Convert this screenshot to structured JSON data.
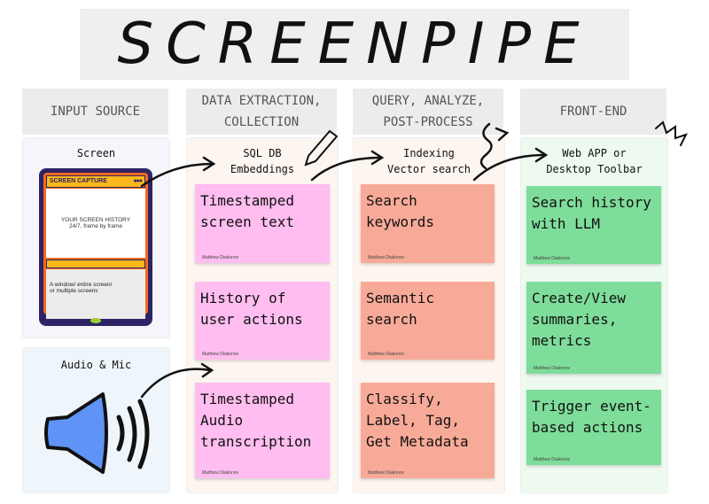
{
  "title": "SCREENPIPE",
  "columns": [
    {
      "header": "INPUT SOURCE"
    },
    {
      "header": "DATA EXTRACTION,\nCOLLECTION",
      "subtitle": "SQL DB\nEmbeddings"
    },
    {
      "header": "QUERY, ANALYZE,\nPOST-PROCESS",
      "subtitle": "Indexing\nVector search"
    },
    {
      "header": "FRONT-END",
      "subtitle": "Web APP or\nDesktop Toolbar"
    }
  ],
  "inputs": {
    "screen": {
      "title": "Screen",
      "card_label": "SCREEN CAPTURE",
      "card_body": "YOUR SCREEN HISTORY\n24/7, frame by frame",
      "card_footer": "A window/ entire screen/\nor multiple screens"
    },
    "audio": {
      "title": "Audio & Mic",
      "icon": "speaker-icon"
    }
  },
  "author": "Matthew Diakonov",
  "extraction_notes": [
    "Timestamped\nscreen text",
    "History of\nuser actions",
    "Timestamped\nAudio\ntranscription"
  ],
  "query_notes": [
    "Search\nkeywords",
    "Semantic\nsearch",
    "Classify,\nLabel, Tag,\nGet Metadata"
  ],
  "frontend_notes": [
    "Search history\nwith LLM",
    "Create/View\nsummaries,\nmetrics",
    "Trigger event-\nbased actions"
  ],
  "colors": {
    "extraction": "#ffbdf0",
    "query": "#f8aa98",
    "frontend": "#7edd9a",
    "card_orange": "#f26a1b",
    "card_navy": "#2e2364",
    "card_yellow": "#fbb81b",
    "speaker": "#5f93f5"
  }
}
